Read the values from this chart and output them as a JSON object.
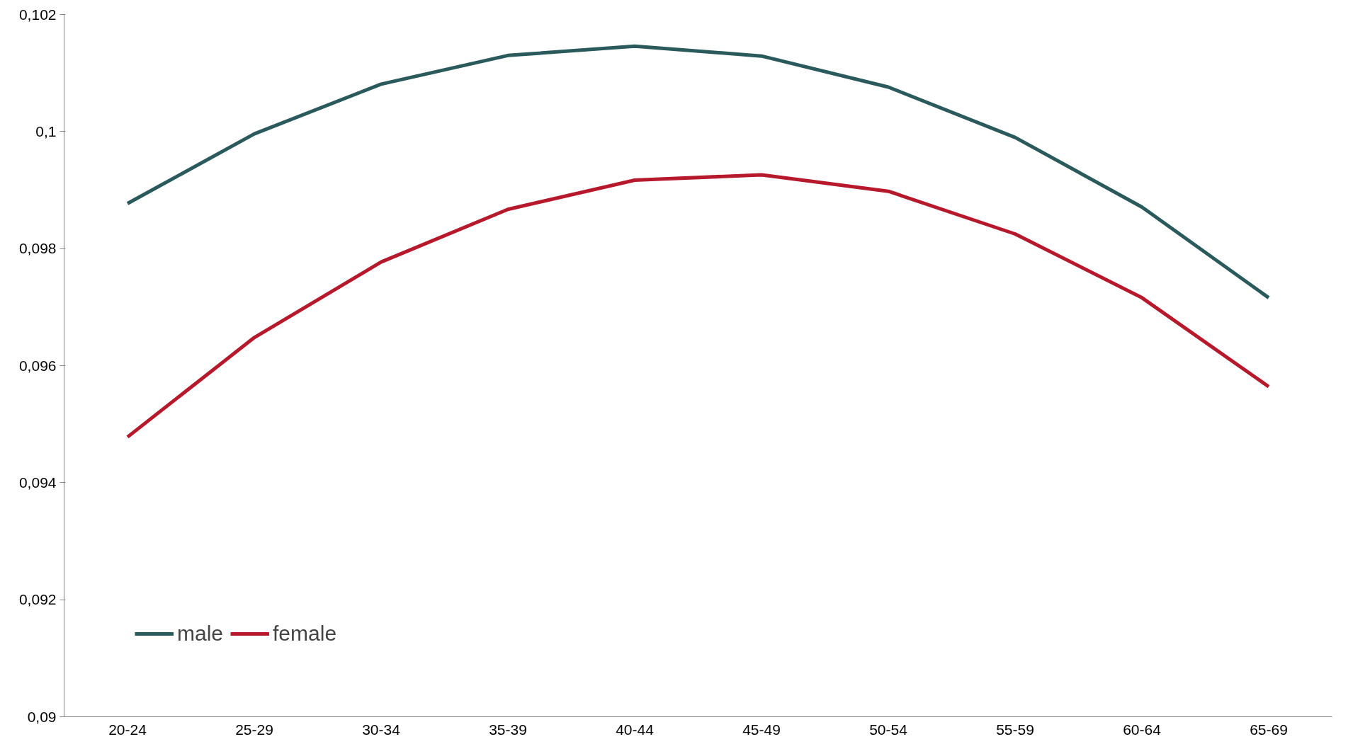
{
  "chart_data": {
    "type": "line",
    "categories": [
      "20-24",
      "25-29",
      "30-34",
      "35-39",
      "40-44",
      "45-49",
      "50-54",
      "55-59",
      "60-64",
      "65-69"
    ],
    "series": [
      {
        "name": "male",
        "color": "#2a5a5c",
        "values": [
          0.09877,
          0.09996,
          0.10081,
          0.1013,
          0.10146,
          0.10129,
          0.10076,
          0.0999,
          0.09871,
          0.09716
        ]
      },
      {
        "name": "female",
        "color": "#b5192b",
        "values": [
          0.09478,
          0.09648,
          0.09777,
          0.09867,
          0.09917,
          0.09926,
          0.09898,
          0.09825,
          0.09716,
          0.09564
        ]
      }
    ],
    "ylim": [
      0.09,
      0.102
    ],
    "yticks": [
      {
        "value": 0.09,
        "label": "0,09"
      },
      {
        "value": 0.092,
        "label": "0,092"
      },
      {
        "value": 0.094,
        "label": "0,094"
      },
      {
        "value": 0.096,
        "label": "0,096"
      },
      {
        "value": 0.098,
        "label": "0,098"
      },
      {
        "value": 0.1,
        "label": "0,1"
      },
      {
        "value": 0.102,
        "label": "0,102"
      }
    ],
    "grid": false,
    "legend": "bottom left",
    "marker": "none",
    "line_style": "solid"
  }
}
